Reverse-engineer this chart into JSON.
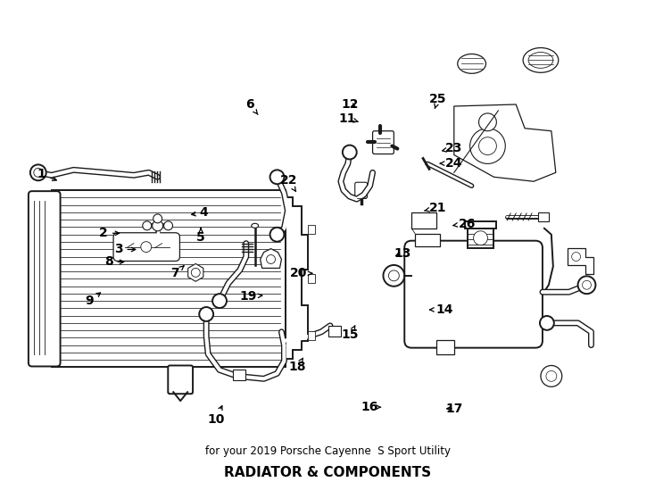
{
  "title": "RADIATOR & COMPONENTS",
  "subtitle": "for your 2019 Porsche Cayenne  S Sport Utility",
  "bg_color": "#ffffff",
  "line_color": "#1a1a1a",
  "fig_width": 7.34,
  "fig_height": 5.4,
  "dpi": 100,
  "labels": {
    "1": [
      0.06,
      0.365,
      0.088,
      0.38
    ],
    "2": [
      0.155,
      0.488,
      0.185,
      0.488
    ],
    "3": [
      0.178,
      0.522,
      0.21,
      0.522
    ],
    "4": [
      0.31,
      0.445,
      0.285,
      0.45
    ],
    "5": [
      0.305,
      0.496,
      0.305,
      0.476
    ],
    "6": [
      0.38,
      0.218,
      0.393,
      0.24
    ],
    "7": [
      0.265,
      0.572,
      0.28,
      0.555
    ],
    "8": [
      0.163,
      0.548,
      0.192,
      0.548
    ],
    "9": [
      0.133,
      0.63,
      0.155,
      0.608
    ],
    "10": [
      0.328,
      0.878,
      0.34,
      0.842
    ],
    "11": [
      0.53,
      0.248,
      0.548,
      0.255
    ],
    "12": [
      0.535,
      0.218,
      0.548,
      0.228
    ],
    "13": [
      0.615,
      0.53,
      0.6,
      0.538
    ],
    "14": [
      0.68,
      0.648,
      0.652,
      0.648
    ],
    "15": [
      0.535,
      0.7,
      0.543,
      0.68
    ],
    "16": [
      0.565,
      0.852,
      0.583,
      0.852
    ],
    "17": [
      0.695,
      0.855,
      0.678,
      0.855
    ],
    "18": [
      0.453,
      0.768,
      0.463,
      0.748
    ],
    "19": [
      0.378,
      0.62,
      0.405,
      0.618
    ],
    "20": [
      0.455,
      0.572,
      0.478,
      0.572
    ],
    "21": [
      0.67,
      0.435,
      0.645,
      0.442
    ],
    "22": [
      0.44,
      0.378,
      0.452,
      0.402
    ],
    "23": [
      0.695,
      0.31,
      0.675,
      0.316
    ],
    "24": [
      0.695,
      0.342,
      0.668,
      0.342
    ],
    "25": [
      0.67,
      0.208,
      0.665,
      0.228
    ],
    "26": [
      0.715,
      0.468,
      0.692,
      0.472
    ]
  }
}
